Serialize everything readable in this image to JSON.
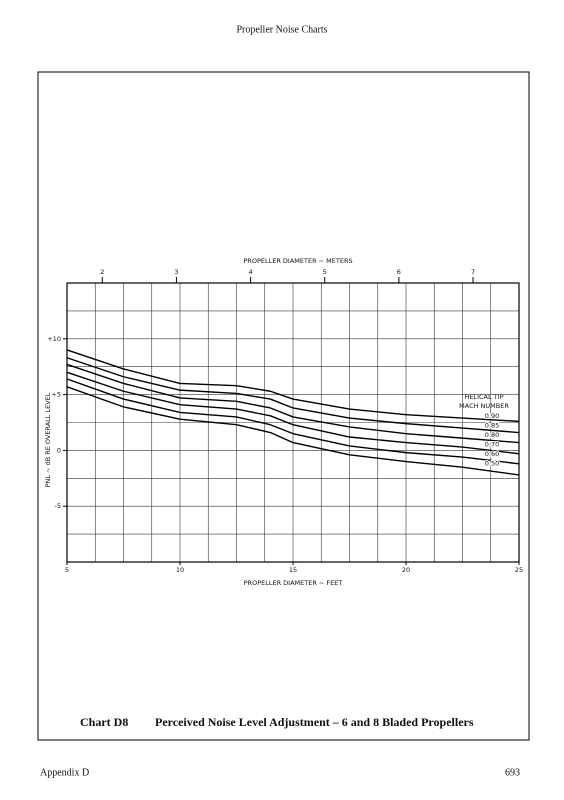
{
  "header": "Propeller Noise Charts",
  "caption": {
    "number": "Chart D8",
    "title": "Perceived Noise Level Adjustment – 6 and 8 Bladed Propellers"
  },
  "footer": {
    "left": "Appendix D",
    "right": "693"
  },
  "chart_data": {
    "type": "line",
    "x_label": "PROPELLER DIAMETER ~ FEET",
    "x2_label": "PROPELLER DIAMETER ~ METERS",
    "y_label": "PNL ~ dB RE OVERALL LEVEL",
    "legend_title": [
      "HELICAL TIP",
      "MACH NUMBER"
    ],
    "x": [
      5,
      7.5,
      10,
      12.5,
      14,
      15,
      17.5,
      20,
      22.5,
      25
    ],
    "xlim": [
      5,
      25
    ],
    "xticks": [
      5,
      10,
      15,
      20,
      25
    ],
    "xgrid": [
      6.25,
      7.5,
      8.75,
      10,
      11.25,
      12.5,
      13.75,
      15,
      16.25,
      17.5,
      18.75,
      20,
      21.25,
      22.5,
      23.75
    ],
    "x2lim": [
      1.524,
      7.62
    ],
    "x2ticks": [
      2,
      3,
      4,
      5,
      6,
      7
    ],
    "ylim": [
      -10,
      15
    ],
    "yticks": [
      {
        "value": 10,
        "label": "+10"
      },
      {
        "value": 5,
        "label": "+5"
      },
      0,
      -5
    ],
    "ygrid": [
      -7.5,
      -5,
      -2.5,
      0,
      2.5,
      5,
      7.5,
      10,
      12.5
    ],
    "color": "#000000",
    "series": [
      {
        "name": "0.90",
        "values": [
          9.0,
          7.3,
          6.0,
          5.8,
          5.3,
          4.6,
          3.7,
          3.2,
          2.9,
          2.6
        ]
      },
      {
        "name": "0.85",
        "values": [
          8.3,
          6.6,
          5.4,
          5.1,
          4.6,
          3.8,
          2.9,
          2.4,
          2.0,
          1.6
        ]
      },
      {
        "name": "0.80",
        "values": [
          7.7,
          6.0,
          4.7,
          4.4,
          3.8,
          3.0,
          2.1,
          1.5,
          1.1,
          0.7
        ]
      },
      {
        "name": "0.70",
        "values": [
          7.0,
          5.3,
          4.1,
          3.7,
          3.1,
          2.3,
          1.2,
          0.7,
          0.3,
          -0.3
        ]
      },
      {
        "name": "0.60",
        "values": [
          6.4,
          4.6,
          3.4,
          3.0,
          2.3,
          1.5,
          0.4,
          -0.2,
          -0.6,
          -1.2
        ]
      },
      {
        "name": "0.50",
        "values": [
          5.7,
          3.9,
          2.8,
          2.3,
          1.6,
          0.7,
          -0.4,
          -1.0,
          -1.5,
          -2.2
        ]
      }
    ]
  }
}
